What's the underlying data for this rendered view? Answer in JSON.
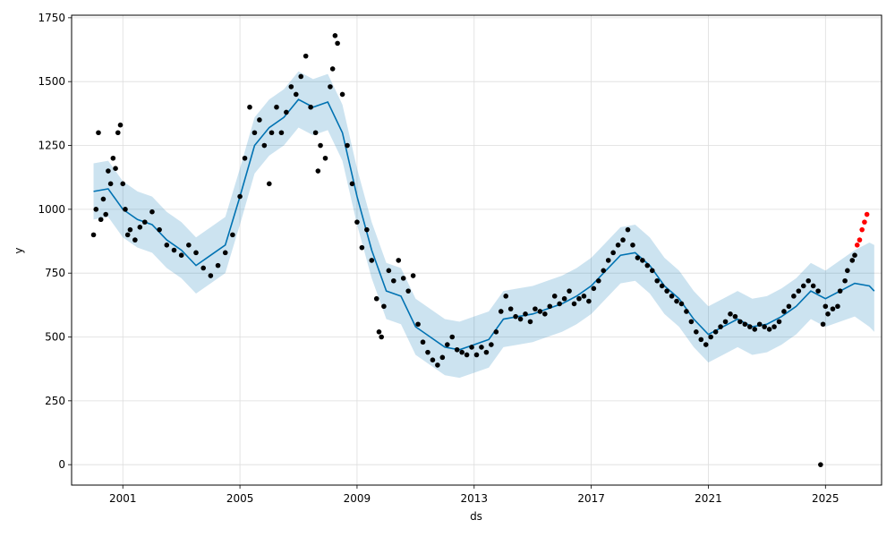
{
  "chart_data": {
    "type": "scatter",
    "title": "",
    "xlabel": "ds",
    "ylabel": "y",
    "x_range": [
      "1999-04-01",
      "2026-12-01"
    ],
    "ylim": [
      -80,
      1760
    ],
    "x_ticks": [
      "2001",
      "2005",
      "2009",
      "2013",
      "2017",
      "2021",
      "2025"
    ],
    "y_ticks": [
      0,
      250,
      500,
      750,
      1000,
      1250,
      1500,
      1750
    ],
    "grid": true,
    "legend": "none",
    "colors": {
      "observed": "#000000",
      "highlight": "#ff0000",
      "forecast_line": "#0072B2",
      "uncertainty_band": "#0072B2"
    },
    "series": [
      {
        "kind": "observed_points",
        "points": [
          [
            "2000-01",
            900
          ],
          [
            "2000-02",
            1000
          ],
          [
            "2000-03",
            1300
          ],
          [
            "2000-04",
            960
          ],
          [
            "2000-05",
            1040
          ],
          [
            "2000-06",
            980
          ],
          [
            "2000-07",
            1150
          ],
          [
            "2000-08",
            1100
          ],
          [
            "2000-09",
            1200
          ],
          [
            "2000-10",
            1160
          ],
          [
            "2000-11",
            1300
          ],
          [
            "2000-12",
            1330
          ],
          [
            "2001-01",
            1100
          ],
          [
            "2001-02",
            1000
          ],
          [
            "2001-03",
            900
          ],
          [
            "2001-04",
            920
          ],
          [
            "2001-06",
            880
          ],
          [
            "2001-08",
            930
          ],
          [
            "2001-10",
            950
          ],
          [
            "2002-01",
            990
          ],
          [
            "2002-04",
            920
          ],
          [
            "2002-07",
            860
          ],
          [
            "2002-10",
            840
          ],
          [
            "2003-01",
            820
          ],
          [
            "2003-04",
            860
          ],
          [
            "2003-07",
            830
          ],
          [
            "2003-10",
            770
          ],
          [
            "2004-01",
            740
          ],
          [
            "2004-04",
            780
          ],
          [
            "2004-07",
            830
          ],
          [
            "2004-10",
            900
          ],
          [
            "2005-01",
            1050
          ],
          [
            "2005-03",
            1200
          ],
          [
            "2005-05",
            1400
          ],
          [
            "2005-07",
            1300
          ],
          [
            "2005-09",
            1350
          ],
          [
            "2005-11",
            1250
          ],
          [
            "2006-01",
            1100
          ],
          [
            "2006-02",
            1300
          ],
          [
            "2006-04",
            1400
          ],
          [
            "2006-06",
            1300
          ],
          [
            "2006-08",
            1380
          ],
          [
            "2006-10",
            1480
          ],
          [
            "2006-12",
            1450
          ],
          [
            "2007-02",
            1520
          ],
          [
            "2007-04",
            1600
          ],
          [
            "2007-06",
            1400
          ],
          [
            "2007-08",
            1300
          ],
          [
            "2007-09",
            1150
          ],
          [
            "2007-10",
            1250
          ],
          [
            "2007-12",
            1200
          ],
          [
            "2008-02",
            1480
          ],
          [
            "2008-03",
            1550
          ],
          [
            "2008-04",
            1680
          ],
          [
            "2008-05",
            1650
          ],
          [
            "2008-07",
            1450
          ],
          [
            "2008-09",
            1250
          ],
          [
            "2008-11",
            1100
          ],
          [
            "2009-01",
            950
          ],
          [
            "2009-03",
            850
          ],
          [
            "2009-05",
            920
          ],
          [
            "2009-07",
            800
          ],
          [
            "2009-09",
            650
          ],
          [
            "2009-10",
            520
          ],
          [
            "2009-11",
            500
          ],
          [
            "2009-12",
            620
          ],
          [
            "2010-02",
            760
          ],
          [
            "2010-04",
            720
          ],
          [
            "2010-06",
            800
          ],
          [
            "2010-08",
            730
          ],
          [
            "2010-10",
            680
          ],
          [
            "2010-12",
            740
          ],
          [
            "2011-02",
            550
          ],
          [
            "2011-04",
            480
          ],
          [
            "2011-06",
            440
          ],
          [
            "2011-08",
            410
          ],
          [
            "2011-10",
            390
          ],
          [
            "2011-12",
            420
          ],
          [
            "2012-02",
            470
          ],
          [
            "2012-04",
            500
          ],
          [
            "2012-06",
            450
          ],
          [
            "2012-08",
            440
          ],
          [
            "2012-10",
            430
          ],
          [
            "2012-12",
            460
          ],
          [
            "2013-02",
            430
          ],
          [
            "2013-04",
            460
          ],
          [
            "2013-06",
            440
          ],
          [
            "2013-08",
            470
          ],
          [
            "2013-10",
            520
          ],
          [
            "2013-12",
            600
          ],
          [
            "2014-02",
            660
          ],
          [
            "2014-04",
            610
          ],
          [
            "2014-06",
            580
          ],
          [
            "2014-08",
            570
          ],
          [
            "2014-10",
            590
          ],
          [
            "2014-12",
            560
          ],
          [
            "2015-02",
            610
          ],
          [
            "2015-04",
            600
          ],
          [
            "2015-06",
            590
          ],
          [
            "2015-08",
            620
          ],
          [
            "2015-10",
            660
          ],
          [
            "2015-12",
            630
          ],
          [
            "2016-02",
            650
          ],
          [
            "2016-04",
            680
          ],
          [
            "2016-06",
            630
          ],
          [
            "2016-08",
            650
          ],
          [
            "2016-10",
            660
          ],
          [
            "2016-12",
            640
          ],
          [
            "2017-02",
            690
          ],
          [
            "2017-04",
            720
          ],
          [
            "2017-06",
            760
          ],
          [
            "2017-08",
            800
          ],
          [
            "2017-10",
            830
          ],
          [
            "2017-12",
            860
          ],
          [
            "2018-02",
            880
          ],
          [
            "2018-04",
            920
          ],
          [
            "2018-06",
            860
          ],
          [
            "2018-08",
            810
          ],
          [
            "2018-10",
            800
          ],
          [
            "2018-12",
            780
          ],
          [
            "2019-02",
            760
          ],
          [
            "2019-04",
            720
          ],
          [
            "2019-06",
            700
          ],
          [
            "2019-08",
            680
          ],
          [
            "2019-10",
            660
          ],
          [
            "2019-12",
            640
          ],
          [
            "2020-02",
            630
          ],
          [
            "2020-04",
            600
          ],
          [
            "2020-06",
            560
          ],
          [
            "2020-08",
            520
          ],
          [
            "2020-10",
            490
          ],
          [
            "2020-12",
            470
          ],
          [
            "2021-02",
            500
          ],
          [
            "2021-04",
            520
          ],
          [
            "2021-06",
            540
          ],
          [
            "2021-08",
            560
          ],
          [
            "2021-10",
            590
          ],
          [
            "2021-12",
            580
          ],
          [
            "2022-02",
            560
          ],
          [
            "2022-04",
            550
          ],
          [
            "2022-06",
            540
          ],
          [
            "2022-08",
            530
          ],
          [
            "2022-10",
            550
          ],
          [
            "2022-12",
            540
          ],
          [
            "2023-02",
            530
          ],
          [
            "2023-04",
            540
          ],
          [
            "2023-06",
            560
          ],
          [
            "2023-08",
            600
          ],
          [
            "2023-10",
            620
          ],
          [
            "2023-12",
            660
          ],
          [
            "2024-02",
            680
          ],
          [
            "2024-04",
            700
          ],
          [
            "2024-06",
            720
          ],
          [
            "2024-08",
            700
          ],
          [
            "2024-10",
            680
          ],
          [
            "2024-11",
            0
          ],
          [
            "2024-12",
            550
          ],
          [
            "2025-01",
            620
          ],
          [
            "2025-02",
            590
          ],
          [
            "2025-04",
            610
          ],
          [
            "2025-06",
            620
          ],
          [
            "2025-07",
            680
          ],
          [
            "2025-09",
            720
          ],
          [
            "2025-10",
            760
          ],
          [
            "2025-12",
            800
          ],
          [
            "2026-01",
            820
          ]
        ]
      },
      {
        "kind": "highlighted_points",
        "points": [
          [
            "2026-02",
            860
          ],
          [
            "2026-03",
            880
          ],
          [
            "2026-04",
            920
          ],
          [
            "2026-05",
            950
          ],
          [
            "2026-06",
            980
          ]
        ]
      },
      {
        "kind": "forecast",
        "points": [
          [
            "2000-01",
            1070,
            960,
            1180
          ],
          [
            "2000-07",
            1080,
            970,
            1190
          ],
          [
            "2001-01",
            1000,
            890,
            1110
          ],
          [
            "2001-07",
            960,
            850,
            1070
          ],
          [
            "2002-01",
            940,
            830,
            1050
          ],
          [
            "2002-07",
            880,
            770,
            990
          ],
          [
            "2003-01",
            840,
            730,
            950
          ],
          [
            "2003-07",
            780,
            670,
            890
          ],
          [
            "2004-01",
            820,
            710,
            930
          ],
          [
            "2004-07",
            860,
            750,
            970
          ],
          [
            "2005-01",
            1050,
            940,
            1160
          ],
          [
            "2005-07",
            1250,
            1140,
            1360
          ],
          [
            "2006-01",
            1320,
            1210,
            1430
          ],
          [
            "2006-07",
            1360,
            1250,
            1470
          ],
          [
            "2007-01",
            1430,
            1320,
            1540
          ],
          [
            "2007-07",
            1400,
            1290,
            1510
          ],
          [
            "2008-01",
            1420,
            1310,
            1530
          ],
          [
            "2008-07",
            1300,
            1190,
            1410
          ],
          [
            "2009-01",
            1050,
            940,
            1160
          ],
          [
            "2009-07",
            840,
            730,
            950
          ],
          [
            "2010-01",
            680,
            570,
            790
          ],
          [
            "2010-07",
            660,
            550,
            770
          ],
          [
            "2011-01",
            540,
            430,
            650
          ],
          [
            "2011-07",
            500,
            390,
            610
          ],
          [
            "2012-01",
            460,
            350,
            570
          ],
          [
            "2012-07",
            450,
            340,
            560
          ],
          [
            "2013-01",
            470,
            360,
            580
          ],
          [
            "2013-07",
            490,
            380,
            600
          ],
          [
            "2014-01",
            570,
            460,
            680
          ],
          [
            "2014-07",
            580,
            470,
            690
          ],
          [
            "2015-01",
            590,
            480,
            700
          ],
          [
            "2015-07",
            610,
            500,
            720
          ],
          [
            "2016-01",
            630,
            520,
            740
          ],
          [
            "2016-07",
            660,
            550,
            770
          ],
          [
            "2017-01",
            700,
            590,
            810
          ],
          [
            "2017-07",
            760,
            650,
            870
          ],
          [
            "2018-01",
            820,
            710,
            930
          ],
          [
            "2018-07",
            830,
            720,
            940
          ],
          [
            "2019-01",
            780,
            670,
            890
          ],
          [
            "2019-07",
            700,
            590,
            810
          ],
          [
            "2020-01",
            650,
            540,
            760
          ],
          [
            "2020-07",
            570,
            460,
            680
          ],
          [
            "2021-01",
            510,
            400,
            620
          ],
          [
            "2021-07",
            540,
            430,
            650
          ],
          [
            "2022-01",
            570,
            460,
            680
          ],
          [
            "2022-07",
            540,
            430,
            650
          ],
          [
            "2023-01",
            550,
            440,
            660
          ],
          [
            "2023-07",
            580,
            470,
            690
          ],
          [
            "2024-01",
            620,
            510,
            730
          ],
          [
            "2024-07",
            680,
            570,
            790
          ],
          [
            "2025-01",
            650,
            540,
            760
          ],
          [
            "2025-07",
            680,
            560,
            800
          ],
          [
            "2026-01",
            710,
            580,
            840
          ],
          [
            "2026-07",
            700,
            540,
            870
          ],
          [
            "2026-09",
            680,
            520,
            860
          ]
        ]
      }
    ]
  }
}
